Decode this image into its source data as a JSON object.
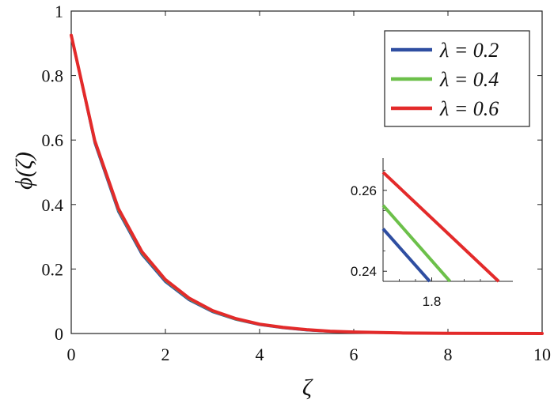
{
  "chart_data": [
    {
      "type": "line",
      "xlabel": "ζ",
      "ylabel": "ϕ(ζ)",
      "xlim": [
        0,
        10
      ],
      "ylim": [
        0,
        1
      ],
      "x_ticks": [
        "0",
        "2",
        "4",
        "6",
        "8",
        "10"
      ],
      "y_ticks": [
        "0",
        "0.2",
        "0.4",
        "0.6",
        "0.8",
        "1"
      ],
      "grid": false,
      "legend_position": "top-right",
      "x": [
        0,
        0.5,
        1,
        1.5,
        2,
        2.5,
        3,
        3.5,
        4,
        4.5,
        5,
        5.5,
        6,
        7,
        8,
        9,
        10
      ],
      "series": [
        {
          "name": "λ = 0.2",
          "color": "#2f4ea1",
          "values": [
            0.925,
            0.59,
            0.378,
            0.245,
            0.16,
            0.104,
            0.067,
            0.043,
            0.027,
            0.017,
            0.01,
            0.006,
            0.004,
            0.0015,
            0.0005,
            0.0002,
            0.0001
          ]
        },
        {
          "name": "λ = 0.4",
          "color": "#6cc04a",
          "values": [
            0.925,
            0.594,
            0.383,
            0.25,
            0.164,
            0.107,
            0.069,
            0.044,
            0.028,
            0.018,
            0.011,
            0.007,
            0.004,
            0.0016,
            0.0006,
            0.0002,
            0.0001
          ]
        },
        {
          "name": "λ = 0.6",
          "color": "#e32a2a",
          "values": [
            0.925,
            0.598,
            0.388,
            0.254,
            0.167,
            0.11,
            0.071,
            0.046,
            0.029,
            0.019,
            0.012,
            0.007,
            0.0045,
            0.0017,
            0.0006,
            0.0002,
            0.0001
          ]
        }
      ]
    },
    {
      "type": "line",
      "xlim": [
        1.74,
        1.9
      ],
      "ylim": [
        0.2375,
        0.268
      ],
      "x_ticks": [
        "1.8"
      ],
      "y_ticks": [
        "0.24",
        "0.26"
      ],
      "series": [
        {
          "name": "λ = 0.2",
          "color": "#2f4ea1",
          "points": [
            [
              1.74,
              0.2505
            ],
            [
              1.7975,
              0.2375
            ]
          ]
        },
        {
          "name": "λ = 0.4",
          "color": "#6cc04a",
          "points": [
            [
              1.74,
              0.2563
            ],
            [
              1.8225,
              0.2375
            ]
          ]
        },
        {
          "name": "λ = 0.6",
          "color": "#e32a2a",
          "points": [
            [
              1.74,
              0.2645
            ],
            [
              1.8825,
              0.2375
            ]
          ]
        }
      ]
    }
  ]
}
